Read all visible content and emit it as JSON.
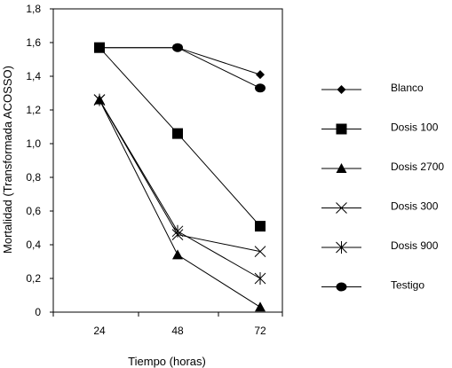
{
  "chart_data": {
    "type": "line",
    "xlabel": "Tiempo (horas)",
    "ylabel": "Mortalidad (Transformada ACOSSO)",
    "categories": [
      "24",
      "48",
      "72"
    ],
    "ylim": [
      0,
      1.8
    ],
    "yticks": [
      0,
      0.2,
      0.4,
      0.6,
      0.8,
      1.0,
      1.2,
      1.4,
      1.6,
      1.8
    ],
    "ytick_labels": [
      "0",
      "0,2",
      "0,4",
      "0,6",
      "0,8",
      "1,0",
      "1,2",
      "1,4",
      "1,6",
      "1,8"
    ],
    "legend_position": "right",
    "grid": false,
    "series": [
      {
        "name": "Blanco",
        "marker": "diamond",
        "values": [
          1.57,
          1.57,
          1.41
        ]
      },
      {
        "name": "Dosis 100",
        "marker": "square",
        "values": [
          1.57,
          1.06,
          0.51
        ]
      },
      {
        "name": "Dosis 2700",
        "marker": "triangle",
        "values": [
          1.26,
          0.34,
          0.03
        ]
      },
      {
        "name": "Dosis  300",
        "marker": "x",
        "values": [
          1.26,
          0.46,
          0.36
        ]
      },
      {
        "name": "Dosis 900",
        "marker": "star",
        "values": [
          1.26,
          0.48,
          0.2
        ]
      },
      {
        "name": "Testigo",
        "marker": "circle",
        "values": [
          1.57,
          1.57,
          1.33
        ]
      }
    ]
  }
}
